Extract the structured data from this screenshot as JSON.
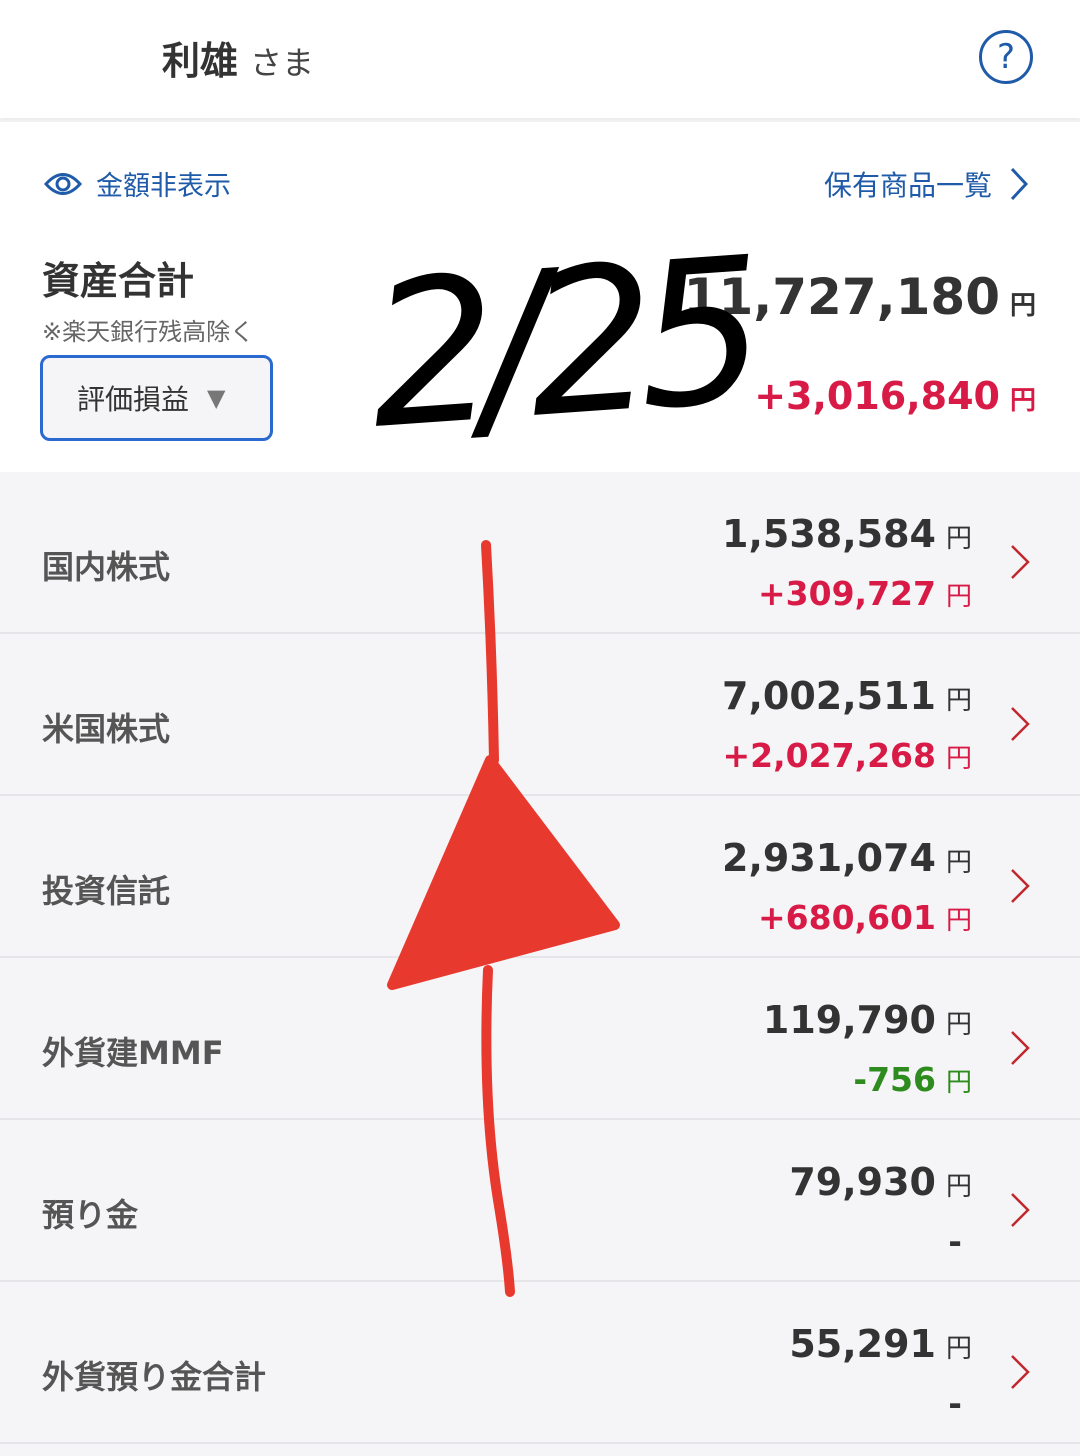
{
  "header": {
    "user_name": "利雄",
    "honorific": "さま",
    "help_icon": "question-circle-icon"
  },
  "summary": {
    "hide_amounts_label": "金額非表示",
    "holdings_link_label": "保有商品一覧",
    "total_label": "資産合計",
    "note": "※楽天銀行残高除く",
    "view_select": "評価損益",
    "total_amount": "11,727,180",
    "total_gain": "+3,016,840",
    "currency": "円"
  },
  "rows": [
    {
      "name": "国内株式",
      "amount": "1,538,584",
      "pl": "+309,727",
      "pl_yen": "円",
      "sign": "pos"
    },
    {
      "name": "米国株式",
      "amount": "7,002,511",
      "pl": "+2,027,268",
      "pl_yen": "円",
      "sign": "pos"
    },
    {
      "name": "投資信託",
      "amount": "2,931,074",
      "pl": "+680,601",
      "pl_yen": "円",
      "sign": "pos"
    },
    {
      "name": "外貨建MMF",
      "amount": "119,790",
      "pl": "-756",
      "pl_yen": "円",
      "sign": "neg"
    },
    {
      "name": "預り金",
      "amount": "79,930",
      "pl": "-",
      "pl_yen": "",
      "sign": "none"
    },
    {
      "name": "外貨預り金合計",
      "amount": "55,291",
      "pl": "-",
      "pl_yen": "",
      "sign": "none"
    }
  ],
  "annotations": {
    "handwritten_date": "2/25",
    "arrow_color": "#e8392f"
  },
  "colors": {
    "accent_blue": "#1f5ba8",
    "gain_red": "#d81b46",
    "loss_green": "#2e8b1e",
    "chevron_red": "#c0282d"
  }
}
